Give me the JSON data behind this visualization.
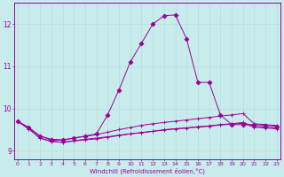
{
  "xlabel": "Windchill (Refroidissement éolien,°C)",
  "background_color": "#c8ecec",
  "line_color": "#990099",
  "grid_color": "#b8e0e0",
  "x_ticks": [
    0,
    1,
    2,
    3,
    4,
    5,
    6,
    7,
    8,
    9,
    10,
    11,
    12,
    13,
    14,
    15,
    16,
    17,
    18,
    19,
    20,
    21,
    22,
    23
  ],
  "y_ticks": [
    9,
    10,
    11,
    12
  ],
  "xlim": [
    -0.3,
    23.3
  ],
  "ylim": [
    8.8,
    12.5
  ],
  "series": [
    [
      9.7,
      9.52,
      9.3,
      9.22,
      9.2,
      9.24,
      9.27,
      9.3,
      9.33,
      9.37,
      9.4,
      9.43,
      9.46,
      9.49,
      9.52,
      9.54,
      9.57,
      9.59,
      9.62,
      9.64,
      9.67,
      9.58,
      9.56,
      9.54
    ],
    [
      9.7,
      9.52,
      9.3,
      9.22,
      9.2,
      9.23,
      9.26,
      9.28,
      9.32,
      9.36,
      9.4,
      9.43,
      9.46,
      9.5,
      9.52,
      9.54,
      9.56,
      9.58,
      9.61,
      9.63,
      9.65,
      9.56,
      9.54,
      9.52
    ],
    [
      9.7,
      9.55,
      9.35,
      9.27,
      9.26,
      9.3,
      9.34,
      9.38,
      9.44,
      9.5,
      9.55,
      9.6,
      9.64,
      9.67,
      9.7,
      9.73,
      9.76,
      9.79,
      9.82,
      9.85,
      9.88,
      9.64,
      9.62,
      9.6
    ],
    [
      9.7,
      9.55,
      9.35,
      9.25,
      9.25,
      9.3,
      9.35,
      9.4,
      9.85,
      10.44,
      11.1,
      11.55,
      12.0,
      12.2,
      12.22,
      11.65,
      10.62,
      10.62,
      9.85,
      9.62,
      9.62,
      9.62,
      9.6,
      9.58
    ]
  ],
  "markers": [
    "+",
    "+",
    "+",
    "D"
  ],
  "markersizes": [
    3,
    3,
    3,
    2.5
  ],
  "linewidths": [
    0.7,
    0.7,
    0.7,
    0.7
  ]
}
